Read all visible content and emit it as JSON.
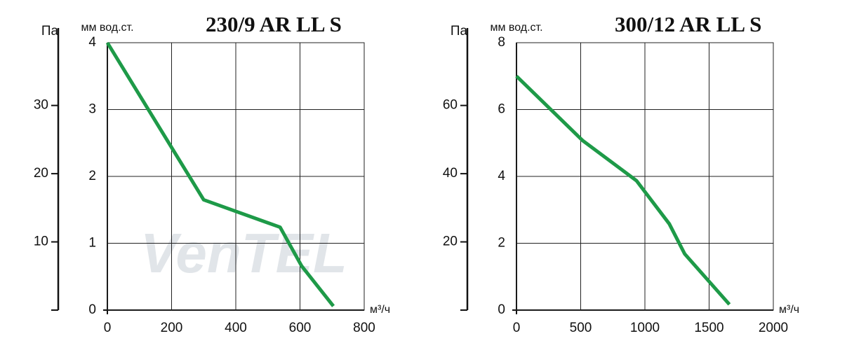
{
  "chart_data": [
    {
      "type": "line",
      "title": "230/9 AR LL S",
      "y_label": "мм вод.ст.",
      "y2_label": "Па",
      "x_label": "м³/ч",
      "watermark": "VenTEL",
      "x": [
        0,
        300,
        538,
        605,
        704
      ],
      "values": [
        4,
        1.65,
        1.24,
        0.66,
        0.06
      ],
      "color": "#1e9a48",
      "xlim": [
        0,
        800
      ],
      "xticks": [
        0,
        200,
        400,
        600,
        800
      ],
      "ylim": [
        0,
        4
      ],
      "yticks": [
        0,
        1,
        2,
        3,
        4
      ],
      "y2lim": [
        0,
        39.2
      ],
      "y2ticks": [
        10,
        20,
        30
      ],
      "grid": true
    },
    {
      "type": "line",
      "title": "300/12  AR LL S",
      "y_label": "мм вод.ст.",
      "y2_label": "Па",
      "x_label": "м³/ч",
      "x": [
        0,
        516,
        935,
        1190,
        1310,
        1658
      ],
      "values": [
        7.0,
        5.07,
        3.87,
        2.58,
        1.68,
        0.17
      ],
      "color": "#1e9a48",
      "xlim": [
        0,
        2000
      ],
      "xticks": [
        0,
        500,
        1000,
        1500,
        2000
      ],
      "ylim": [
        0,
        8
      ],
      "yticks": [
        0,
        2,
        4,
        6,
        8
      ],
      "y2lim": [
        0,
        78.4
      ],
      "y2ticks": [
        20,
        40,
        60
      ],
      "grid": true
    }
  ]
}
